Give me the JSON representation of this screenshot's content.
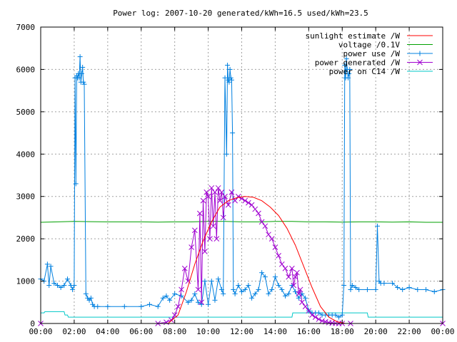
{
  "chart_data": {
    "type": "line",
    "title": "Power log: 2007-10-20 generated/kWh=16.5 used/kWh=23.5",
    "xlabel": "",
    "ylabel": "",
    "ylim": [
      0,
      7000
    ],
    "yticks": [
      "0",
      "1000",
      "2000",
      "3000",
      "4000",
      "5000",
      "6000",
      "7000"
    ],
    "xlim_hours": [
      0,
      24
    ],
    "xticks": [
      "00:00",
      "02:00",
      "04:00",
      "06:00",
      "08:00",
      "10:00",
      "12:00",
      "14:00",
      "16:00",
      "18:00",
      "20:00",
      "22:00",
      "00:00"
    ],
    "grid": true,
    "legend_position": "top-right",
    "series": [
      {
        "name": "sunlight estimate /W",
        "color": "#ff0000",
        "marker": "none",
        "x": [
          0,
          7.6,
          8.2,
          8.7,
          9.2,
          9.7,
          10.2,
          10.7,
          11.2,
          11.7,
          12.2,
          12.7,
          13.2,
          13.7,
          14.2,
          14.7,
          15.2,
          15.7,
          16.2,
          16.7,
          17.2,
          17.7,
          18.2,
          24
        ],
        "y": [
          0,
          0,
          200,
          750,
          1400,
          1950,
          2400,
          2750,
          2900,
          2970,
          3000,
          2980,
          2900,
          2750,
          2550,
          2250,
          1850,
          1350,
          850,
          400,
          150,
          40,
          0,
          0
        ]
      },
      {
        "name": "voltage /0.1V",
        "color": "#00a000",
        "marker": "none",
        "x": [
          0,
          1,
          2,
          3,
          4,
          5,
          6,
          7,
          8,
          9,
          10,
          11,
          12,
          13,
          14,
          15,
          16,
          17,
          18,
          19,
          20,
          21,
          22,
          23,
          24
        ],
        "y": [
          2390,
          2400,
          2410,
          2405,
          2400,
          2400,
          2400,
          2395,
          2400,
          2400,
          2410,
          2410,
          2400,
          2400,
          2410,
          2410,
          2400,
          2400,
          2395,
          2400,
          2400,
          2395,
          2400,
          2390,
          2390
        ]
      },
      {
        "name": "power use /W",
        "color": "#0080e0",
        "marker": "plus",
        "x": [
          0,
          0.2,
          0.4,
          0.5,
          0.6,
          0.8,
          1.0,
          1.2,
          1.4,
          1.6,
          1.8,
          1.9,
          2.0,
          2.05,
          2.1,
          2.15,
          2.2,
          2.25,
          2.3,
          2.35,
          2.4,
          2.45,
          2.5,
          2.55,
          2.6,
          2.7,
          2.8,
          2.9,
          3.0,
          3.1,
          3.2,
          3.4,
          4.0,
          5.0,
          6.0,
          6.5,
          7.0,
          7.3,
          7.5,
          7.7,
          8.0,
          8.4,
          8.8,
          9.0,
          9.2,
          9.4,
          9.6,
          9.8,
          10.0,
          10.2,
          10.4,
          10.6,
          10.8,
          10.9,
          11.0,
          11.1,
          11.15,
          11.2,
          11.25,
          11.3,
          11.35,
          11.4,
          11.45,
          11.5,
          11.6,
          11.8,
          12.0,
          12.2,
          12.4,
          12.6,
          12.8,
          13.0,
          13.2,
          13.4,
          13.6,
          13.8,
          14.0,
          14.2,
          14.4,
          14.6,
          14.8,
          15.0,
          15.2,
          15.4,
          15.6,
          15.8,
          16.0,
          16.2,
          16.4,
          16.6,
          16.8,
          17.0,
          17.2,
          17.4,
          17.6,
          17.8,
          18.0,
          18.1,
          18.15,
          18.2,
          18.25,
          18.3,
          18.35,
          18.4,
          18.45,
          18.5,
          18.6,
          18.8,
          19.0,
          19.5,
          20.0,
          20.1,
          20.2,
          20.3,
          20.5,
          21.0,
          21.3,
          21.6,
          22.0,
          22.5,
          23.0,
          23.5,
          24
        ],
        "y": [
          1050,
          1000,
          1400,
          900,
          1350,
          950,
          900,
          850,
          900,
          1050,
          900,
          800,
          900,
          5800,
          3300,
          5850,
          5800,
          5900,
          5800,
          6300,
          5700,
          5900,
          6050,
          5700,
          5650,
          700,
          600,
          550,
          600,
          450,
          400,
          400,
          400,
          400,
          400,
          450,
          400,
          600,
          650,
          550,
          700,
          650,
          500,
          550,
          700,
          500,
          450,
          1000,
          450,
          1000,
          550,
          1050,
          800,
          700,
          5800,
          4000,
          6100,
          5750,
          5700,
          6000,
          5800,
          5750,
          4500,
          800,
          700,
          900,
          750,
          800,
          900,
          600,
          700,
          800,
          1200,
          1100,
          700,
          800,
          1100,
          900,
          800,
          650,
          700,
          900,
          750,
          600,
          700,
          600,
          300,
          250,
          250,
          250,
          200,
          200,
          200,
          200,
          200,
          150,
          200,
          900,
          6100,
          5800,
          6250,
          6000,
          5800,
          5900,
          6000,
          800,
          900,
          850,
          800,
          800,
          800,
          2300,
          1000,
          950,
          950,
          950,
          850,
          800,
          850,
          800,
          800,
          750,
          800
        ]
      },
      {
        "name": "power generated /W",
        "color": "#a000d0",
        "marker": "cross",
        "x": [
          0,
          7.0,
          7.5,
          7.8,
          8.0,
          8.2,
          8.4,
          8.6,
          8.8,
          9.0,
          9.2,
          9.4,
          9.5,
          9.6,
          9.7,
          9.8,
          9.9,
          10.0,
          10.1,
          10.2,
          10.3,
          10.4,
          10.5,
          10.6,
          10.7,
          10.8,
          10.9,
          11.0,
          11.2,
          11.4,
          11.6,
          11.8,
          12.0,
          12.2,
          12.4,
          12.6,
          12.8,
          13.0,
          13.2,
          13.4,
          13.6,
          13.8,
          14.0,
          14.2,
          14.4,
          14.6,
          14.8,
          15.0,
          15.1,
          15.2,
          15.3,
          15.4,
          15.5,
          15.6,
          15.8,
          16.0,
          16.2,
          16.4,
          16.6,
          16.8,
          17.0,
          17.2,
          17.4,
          17.6,
          17.8,
          18.0,
          18.5,
          24
        ],
        "y": [
          0,
          0,
          30,
          80,
          200,
          400,
          800,
          1300,
          1000,
          1800,
          2200,
          800,
          2600,
          500,
          2900,
          1700,
          3100,
          3000,
          2000,
          3200,
          2300,
          3100,
          2000,
          3200,
          2900,
          3100,
          2500,
          3000,
          2800,
          3100,
          2900,
          3000,
          2950,
          2900,
          2850,
          2800,
          2700,
          2600,
          2400,
          2300,
          2100,
          2000,
          1800,
          1600,
          1400,
          1300,
          1100,
          1300,
          900,
          1100,
          1200,
          700,
          800,
          500,
          400,
          300,
          200,
          150,
          100,
          60,
          40,
          20,
          10,
          5,
          0,
          0,
          0,
          0
        ]
      },
      {
        "name": "power on C14 /W",
        "color": "#00c8c8",
        "marker": "none",
        "x": [
          0,
          0.2,
          0.25,
          1.4,
          1.45,
          1.6,
          1.65,
          15.0,
          15.05,
          19.5,
          19.55,
          24
        ],
        "y": [
          250,
          250,
          280,
          280,
          200,
          200,
          150,
          150,
          250,
          250,
          150,
          150
        ]
      }
    ]
  }
}
